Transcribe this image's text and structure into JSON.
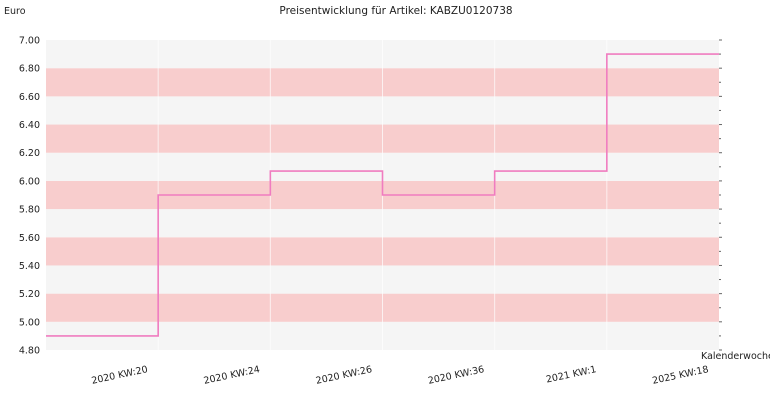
{
  "chart_data": {
    "type": "line",
    "step": true,
    "title": "Preisentwicklung für Artikel: KABZU0120738",
    "ylabel": "Euro",
    "xlabel": "Kalenderwoche",
    "ylim": [
      4.8,
      7.0
    ],
    "yticks": [
      "7.00",
      "6.80",
      "6.60",
      "6.40",
      "6.20",
      "6.00",
      "5.80",
      "5.60",
      "5.40",
      "5.20",
      "5.00",
      "4.80"
    ],
    "categories": [
      "2020 KW:20",
      "2020 KW:24",
      "2020 KW:26",
      "2020 KW:36",
      "2021 KW:1",
      "2025 KW:18"
    ],
    "values": [
      4.9,
      5.9,
      6.07,
      5.9,
      6.07,
      6.9
    ],
    "grid": true,
    "colors": {
      "line": "#f07cc0",
      "band_light": "#f5f5f5",
      "band_dark": "#f8cdcd",
      "axis": "#666666"
    }
  }
}
